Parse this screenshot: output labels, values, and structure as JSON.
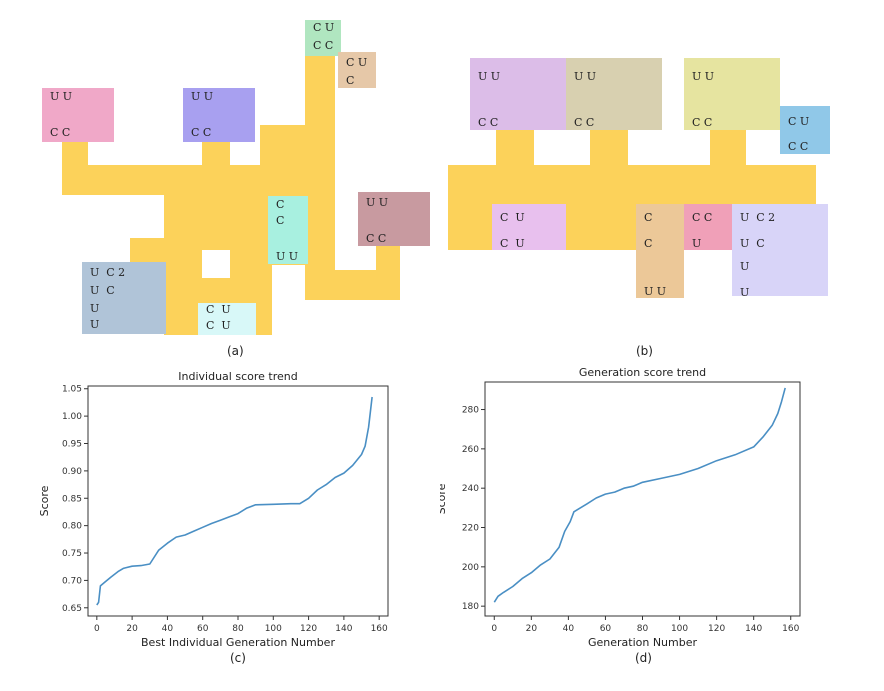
{
  "captions": {
    "a": "(a)",
    "b": "(b)",
    "c": "(c)",
    "d": "(d)"
  },
  "layout_a": {
    "blocks": [
      {
        "color": "#f0a8c8",
        "cells": [
          "U U",
          "C C"
        ]
      },
      {
        "color": "#a8a0f0",
        "cells": [
          "U U",
          "C C"
        ]
      },
      {
        "color": "#b0e6c0",
        "cells": [
          "C U",
          "C C"
        ]
      },
      {
        "color": "#e6c8a8",
        "cells": [
          "C U",
          "C"
        ]
      },
      {
        "color": "#a8f0e0",
        "cells": [
          "C",
          "C",
          "U U"
        ]
      },
      {
        "color": "#c89aa0",
        "cells": [
          "U U",
          "C C"
        ]
      },
      {
        "color": "#b0c4d8",
        "cells": [
          "U  C 2",
          "U  C",
          "U",
          "U"
        ]
      },
      {
        "color": "#d8f8f8",
        "cells": [
          "C  U",
          "C  U"
        ]
      }
    ]
  },
  "layout_b": {
    "blocks": [
      {
        "color": "#dcbde8",
        "cells": [
          "U U",
          "C C"
        ]
      },
      {
        "color": "#d8d0b0",
        "cells": [
          "U U",
          "C C"
        ]
      },
      {
        "color": "#e6e4a0",
        "cells": [
          "U U",
          "C C"
        ]
      },
      {
        "color": "#90c8e8",
        "cells": [
          "C U",
          "C C"
        ]
      },
      {
        "color": "#e8c0ee",
        "cells": [
          "C  U",
          "C  U"
        ]
      },
      {
        "color": "#ecc898",
        "cells": [
          "C",
          "C",
          "U U"
        ]
      },
      {
        "color": "#f0a0b8",
        "cells": [
          "C C",
          "U"
        ]
      },
      {
        "color": "#d8d4f8",
        "cells": [
          "U  C 2",
          "U  C",
          "U",
          "U"
        ]
      }
    ]
  },
  "chart_data": [
    {
      "type": "line",
      "title": "Individual score trend",
      "xlabel": "Best Individual Generation Number",
      "ylabel": "Score",
      "xlim": [
        -5,
        165
      ],
      "ylim": [
        0.635,
        1.055
      ],
      "x_ticks": [
        0,
        20,
        40,
        60,
        80,
        100,
        120,
        140,
        160
      ],
      "y_ticks": [
        0.65,
        0.7,
        0.75,
        0.8,
        0.85,
        0.9,
        0.95,
        1.0,
        1.05
      ],
      "y_tick_labels": [
        "0.65",
        "0.70",
        "0.75",
        "0.80",
        "0.85",
        "0.90",
        "0.95",
        "1.00",
        "1.05"
      ],
      "grid": false,
      "color": "#4a8fc4",
      "points": [
        [
          0,
          0.655
        ],
        [
          1,
          0.66
        ],
        [
          2,
          0.69
        ],
        [
          5,
          0.698
        ],
        [
          8,
          0.706
        ],
        [
          12,
          0.716
        ],
        [
          15,
          0.722
        ],
        [
          20,
          0.726
        ],
        [
          25,
          0.727
        ],
        [
          30,
          0.73
        ],
        [
          35,
          0.755
        ],
        [
          40,
          0.768
        ],
        [
          45,
          0.779
        ],
        [
          50,
          0.783
        ],
        [
          55,
          0.79
        ],
        [
          60,
          0.797
        ],
        [
          65,
          0.804
        ],
        [
          70,
          0.81
        ],
        [
          75,
          0.816
        ],
        [
          80,
          0.822
        ],
        [
          85,
          0.832
        ],
        [
          90,
          0.838
        ],
        [
          100,
          0.839
        ],
        [
          110,
          0.84
        ],
        [
          115,
          0.84
        ],
        [
          120,
          0.85
        ],
        [
          125,
          0.865
        ],
        [
          130,
          0.875
        ],
        [
          135,
          0.888
        ],
        [
          140,
          0.896
        ],
        [
          145,
          0.91
        ],
        [
          150,
          0.93
        ],
        [
          152,
          0.945
        ],
        [
          154,
          0.98
        ],
        [
          156,
          1.035
        ]
      ]
    },
    {
      "type": "line",
      "title": "Generation score trend",
      "xlabel": "Generation Number",
      "ylabel": "Score",
      "xlim": [
        -5,
        165
      ],
      "ylim": [
        175,
        294
      ],
      "x_ticks": [
        0,
        20,
        40,
        60,
        80,
        100,
        120,
        140,
        160
      ],
      "y_ticks": [
        180,
        200,
        220,
        240,
        260,
        280
      ],
      "y_tick_labels": [
        "180",
        "200",
        "220",
        "240",
        "260",
        "280"
      ],
      "grid": false,
      "color": "#4a8fc4",
      "points": [
        [
          0,
          182
        ],
        [
          2,
          185
        ],
        [
          5,
          187
        ],
        [
          10,
          190
        ],
        [
          15,
          194
        ],
        [
          20,
          197
        ],
        [
          25,
          201
        ],
        [
          30,
          204
        ],
        [
          35,
          210
        ],
        [
          38,
          218
        ],
        [
          41,
          223
        ],
        [
          43,
          228
        ],
        [
          50,
          232
        ],
        [
          55,
          235
        ],
        [
          60,
          237
        ],
        [
          65,
          238
        ],
        [
          70,
          240
        ],
        [
          75,
          241
        ],
        [
          80,
          243
        ],
        [
          90,
          245
        ],
        [
          100,
          247
        ],
        [
          110,
          250
        ],
        [
          120,
          254
        ],
        [
          130,
          257
        ],
        [
          140,
          261
        ],
        [
          145,
          266
        ],
        [
          150,
          272
        ],
        [
          153,
          278
        ],
        [
          155,
          284
        ],
        [
          157,
          291
        ]
      ]
    }
  ]
}
